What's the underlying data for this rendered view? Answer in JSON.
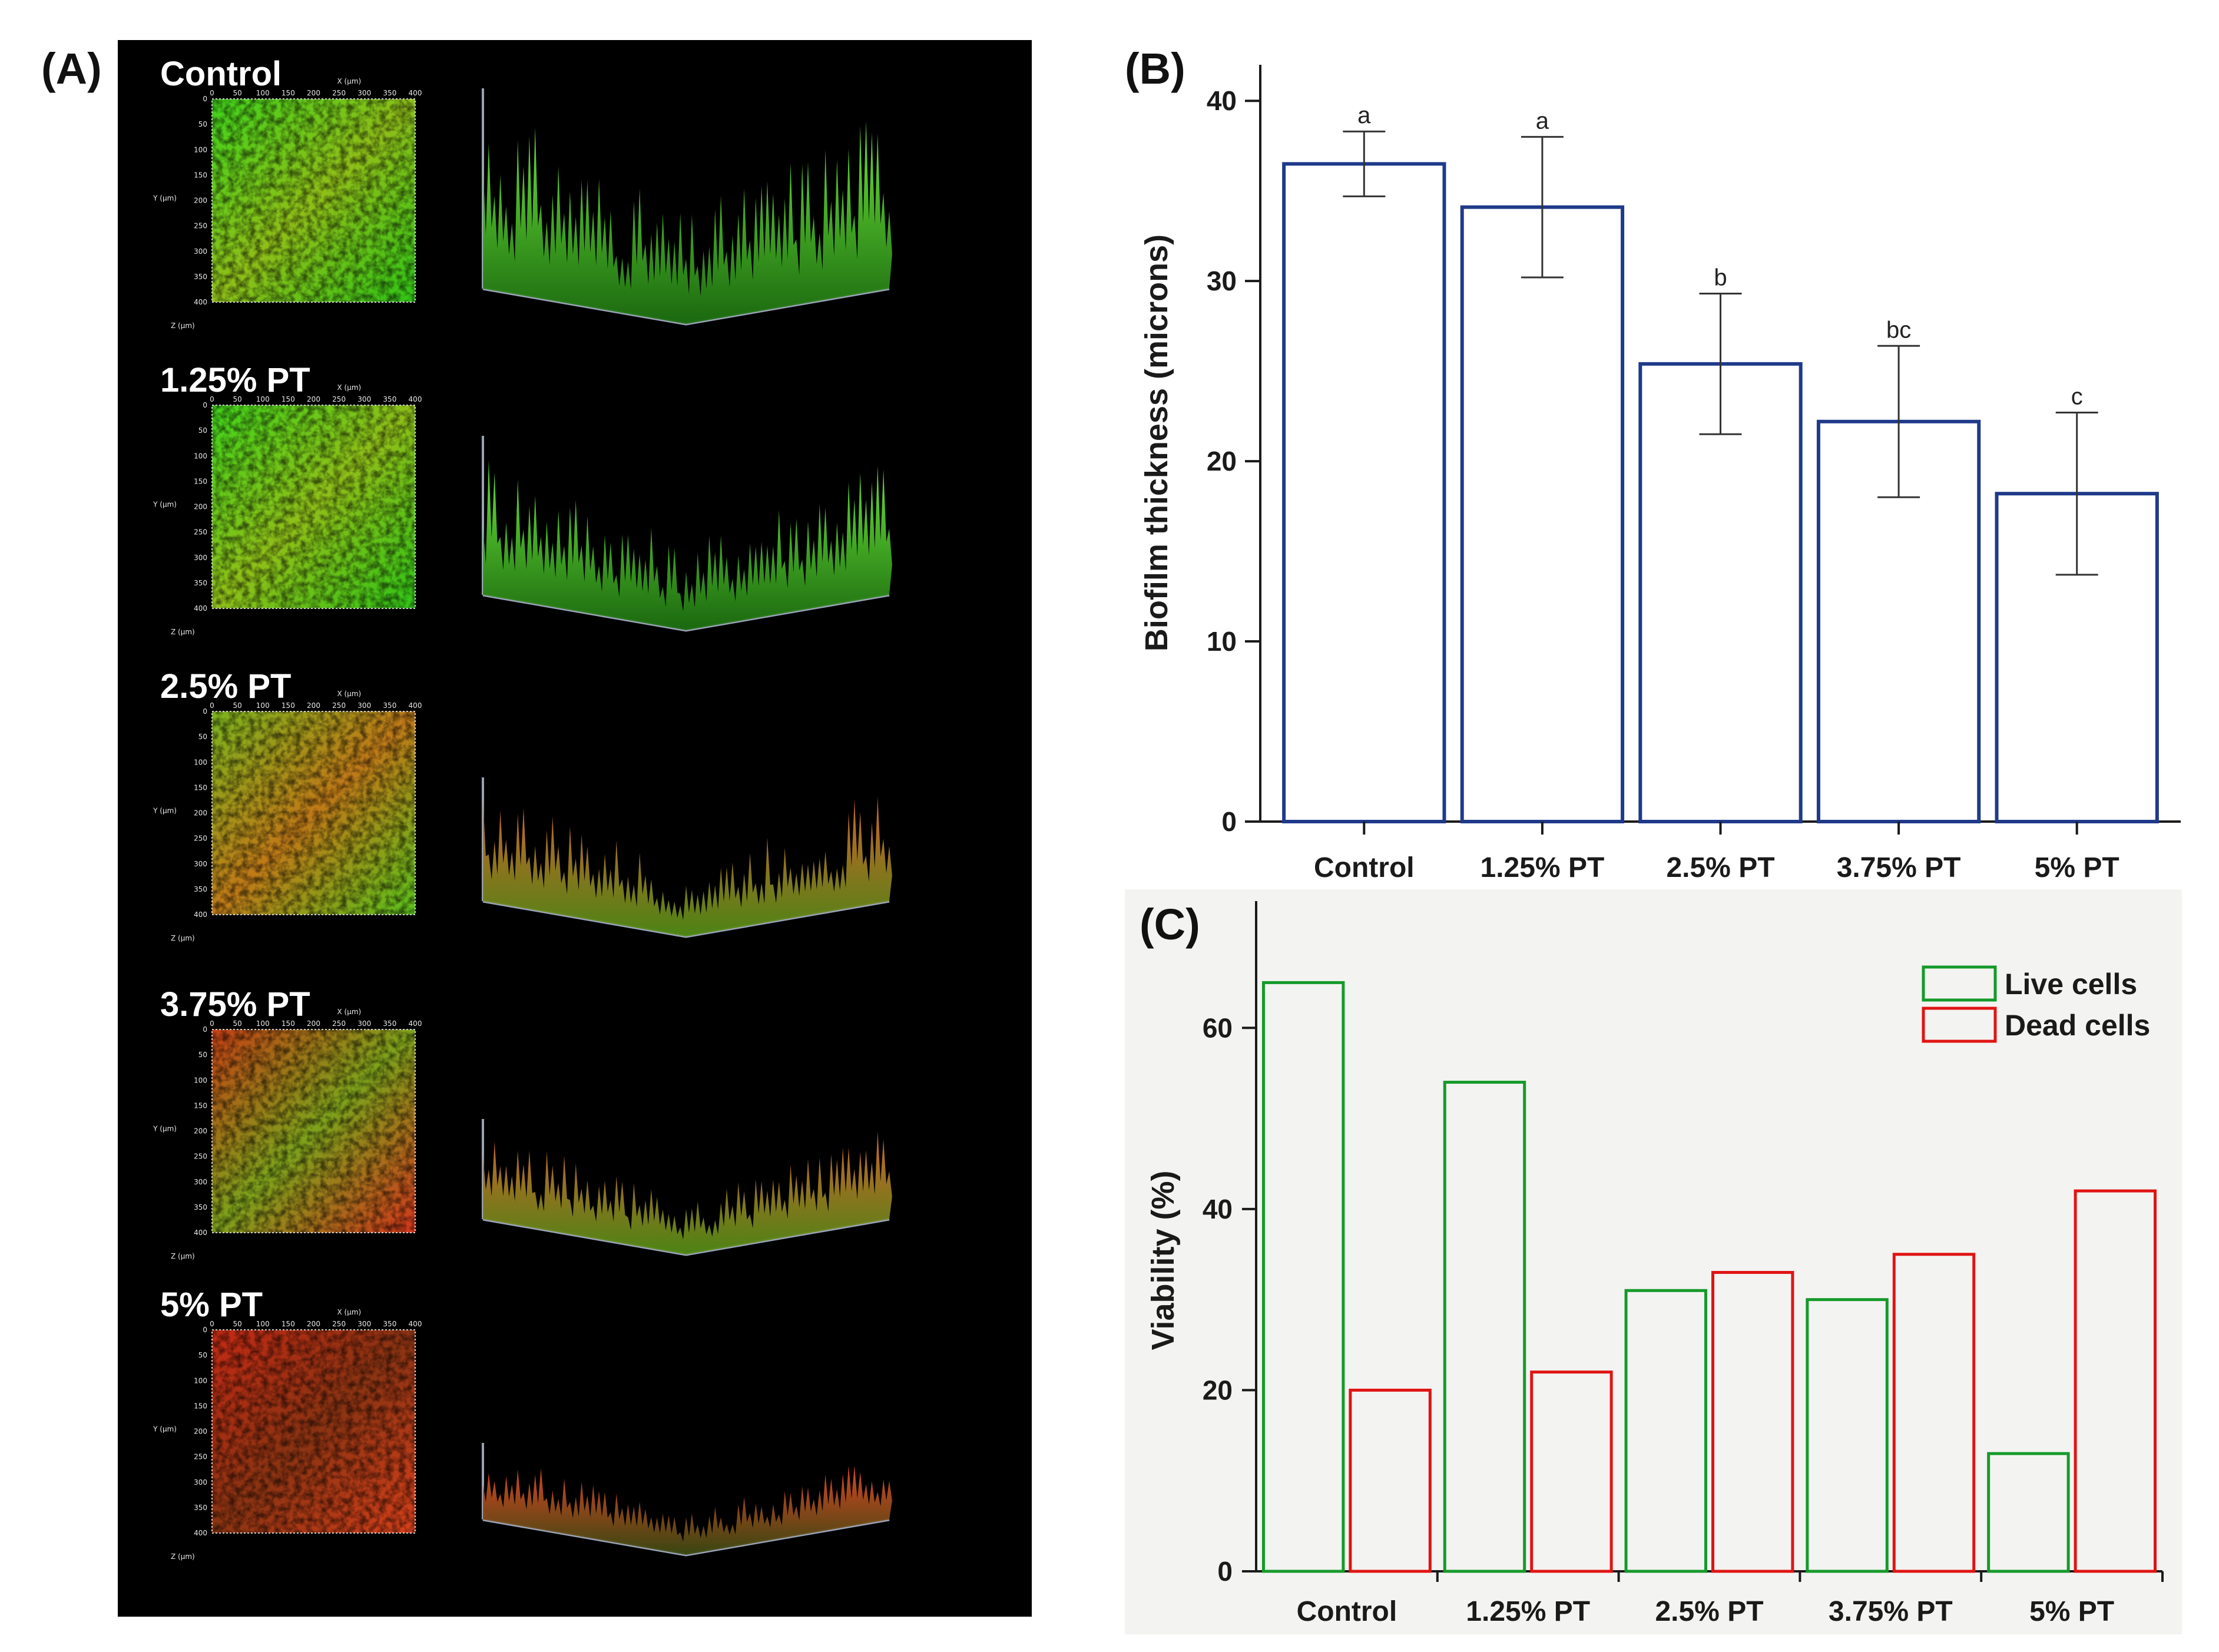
{
  "panels": {
    "a_label": "(A)",
    "b_label": "(B)",
    "c_label": "(C)"
  },
  "micrographs": [
    {
      "label": "Control",
      "tint": "green"
    },
    {
      "label": "1.25% PT",
      "tint": "green"
    },
    {
      "label": "2.5%  PT",
      "tint": "mixed"
    },
    {
      "label": "3.75% PT",
      "tint": "red-green"
    },
    {
      "label": "5%  PT",
      "tint": "red"
    }
  ],
  "micro_axes": {
    "x_title": "X (μm)",
    "y_title": "Y (μm)",
    "z_title": "Z (μm)",
    "ticks": [
      "0",
      "50",
      "100",
      "150",
      "200",
      "250",
      "300",
      "350",
      "400"
    ]
  },
  "colors": {
    "background_a": "#000000",
    "bar_b": "#1f3a8a",
    "live": "#159a2a",
    "dead": "#e01414",
    "chart_c_bg": "#f3f3f1"
  },
  "chart_data": [
    {
      "type": "bar",
      "title": "",
      "xlabel": "",
      "ylabel": "Biofilm thickness (microns)",
      "ylim": [
        0,
        42
      ],
      "yticks": [
        0,
        10,
        20,
        30,
        40
      ],
      "categories": [
        "Control",
        "1.25% PT",
        "2.5% PT",
        "3.75% PT",
        "5% PT"
      ],
      "values": [
        36.5,
        34.1,
        25.4,
        22.2,
        18.2
      ],
      "error_bars": [
        1.8,
        3.9,
        3.9,
        4.2,
        4.5
      ],
      "significance": [
        "a",
        "a",
        "b",
        "bc",
        "c"
      ]
    },
    {
      "type": "bar",
      "title": "",
      "xlabel": "",
      "ylabel": "Viability (%)",
      "ylim": [
        0,
        74
      ],
      "yticks": [
        0,
        20,
        40,
        60
      ],
      "categories": [
        "Control",
        "1.25% PT",
        "2.5% PT",
        "3.75% PT",
        "5% PT"
      ],
      "series": [
        {
          "name": "Live cells",
          "values": [
            65,
            54,
            31,
            30,
            13
          ]
        },
        {
          "name": "Dead cells",
          "values": [
            20,
            22,
            33,
            35,
            42
          ]
        }
      ],
      "legend": "top-right"
    }
  ]
}
